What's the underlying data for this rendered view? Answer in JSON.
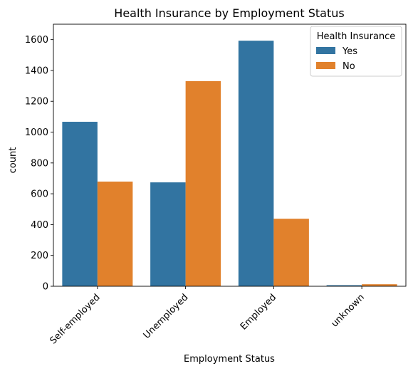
{
  "chart_data": {
    "type": "bar",
    "title": "Health Insurance by Employment Status",
    "xlabel": "Employment Status",
    "ylabel": "count",
    "categories": [
      "Self-employed",
      "Unemployed",
      "Employed",
      "unknown"
    ],
    "series": [
      {
        "name": "Yes",
        "color": "#3274a1",
        "values": [
          1067,
          674,
          1593,
          7
        ]
      },
      {
        "name": "No",
        "color": "#e1812c",
        "values": [
          679,
          1331,
          438,
          13
        ]
      }
    ],
    "ylim": [
      0,
      1700
    ],
    "yticks": [
      0,
      200,
      400,
      600,
      800,
      1000,
      1200,
      1400,
      1600
    ],
    "legend": {
      "title": "Health Insurance",
      "placement": "top-right"
    },
    "grid": false
  }
}
